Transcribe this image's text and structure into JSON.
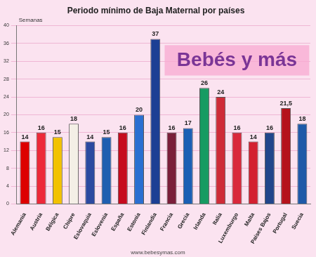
{
  "chart_data": {
    "type": "bar",
    "title": "Periodo mínimo de Baja Maternal por países",
    "y_label": "Semanas",
    "annotations": [
      "Bebés y más",
      "www.bebesymas.com"
    ],
    "categories": [
      "Alemania",
      "Austria",
      "Bélgica",
      "Chipre",
      "Eslovaquia",
      "Eslovenia",
      "España",
      "Estonia",
      "Finlandia",
      "Francia",
      "Grecia",
      "Irlanda",
      "Italia",
      "Luxemburgo",
      "Malta",
      "Países Bajos",
      "Portugal",
      "Suecia"
    ],
    "values": [
      14,
      16,
      15,
      18,
      14,
      15,
      16,
      20,
      37,
      16,
      17,
      26,
      24,
      16,
      14,
      16,
      21.5,
      18
    ],
    "value_labels": [
      "14",
      "16",
      "15",
      "18",
      "14",
      "15",
      "16",
      "20",
      "37",
      "16",
      "17",
      "26",
      "24",
      "16",
      "14",
      "16",
      "21,5",
      "18"
    ],
    "colors": [
      "#dd0000",
      "#ed2939",
      "#f2c200",
      "#f4efe6",
      "#2b4aa0",
      "#1f5fb0",
      "#c60b1e",
      "#2a6fd1",
      "#1c3f94",
      "#7a1f3a",
      "#1a5fb4",
      "#169b62",
      "#ce2b37",
      "#d9283b",
      "#d32030",
      "#21468b",
      "#b5121b",
      "#1e5aa8"
    ],
    "ylim": [
      0,
      40
    ],
    "yticks": [
      0,
      4,
      8,
      12,
      16,
      20,
      24,
      28,
      32,
      36,
      40
    ],
    "grid": true,
    "data_labels": true
  }
}
